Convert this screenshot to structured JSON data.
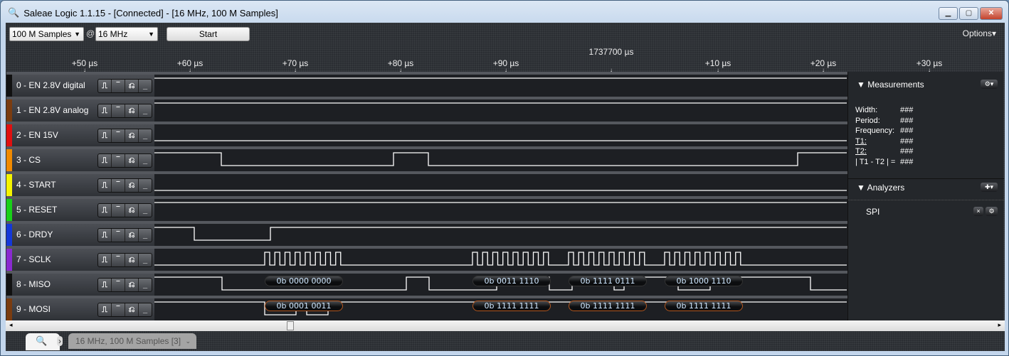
{
  "window": {
    "title": "Saleae Logic 1.1.15 - [Connected] - [16 MHz, 100 M Samples]",
    "icon": "magnifier-icon",
    "buttons": [
      "minimize",
      "maximize",
      "close"
    ]
  },
  "toolbar": {
    "samples": "100 M Samples",
    "at": "@",
    "rate": "16 MHz",
    "start": "Start",
    "options": "Options"
  },
  "timeline": {
    "center": "1737700 µs",
    "ticks": [
      "+50 µs",
      "+60 µs",
      "+70 µs",
      "+80 µs",
      "+90 µs",
      "+10 µs",
      "+20 µs",
      "+30 µs"
    ]
  },
  "channels": [
    {
      "name": "0 - EN 2.8V digital",
      "color": "#111111"
    },
    {
      "name": "1 - EN 2.8V analog",
      "color": "#7a3c10"
    },
    {
      "name": "2 - EN 15V",
      "color": "#e01010"
    },
    {
      "name": "3 - CS",
      "color": "#f08a00"
    },
    {
      "name": "4 - START",
      "color": "#f4f400"
    },
    {
      "name": "5 - RESET",
      "color": "#18d018"
    },
    {
      "name": "6 - DRDY",
      "color": "#1438d8"
    },
    {
      "name": "7 - SCLK",
      "color": "#8a2ad0"
    },
    {
      "name": "8 - MISO",
      "color": "#111111"
    },
    {
      "name": "9 - MOSI",
      "color": "#7a3c10"
    }
  ],
  "trigger_icons": [
    "rising-edge-icon",
    "high-level-icon",
    "falling-edge-icon",
    "low-level-icon"
  ],
  "trigger_glyphs": [
    "⎍",
    "‾",
    "⎌",
    "_"
  ],
  "spi": {
    "miso": [
      "0b 0000 0000",
      "0b 0011 1110",
      "0b 1111 0111",
      "0b 1000 1110"
    ],
    "mosi": [
      "0b 0001 0011",
      "0b 1111 1111",
      "0b 1111 1111",
      "0b 1111 1111"
    ]
  },
  "measurements": {
    "title": "Measurements",
    "rows": [
      [
        "Width:",
        "###"
      ],
      [
        "Period:",
        "###"
      ],
      [
        "Frequency:",
        "###"
      ],
      [
        "T1:",
        "###"
      ],
      [
        "T2:",
        "###"
      ],
      [
        "| T1 - T2 | =",
        "###"
      ]
    ]
  },
  "analyzers": {
    "title": "Analyzers",
    "items": [
      "SPI"
    ]
  },
  "tabs": {
    "session": "16 MHz, 100 M Samples [3]"
  }
}
